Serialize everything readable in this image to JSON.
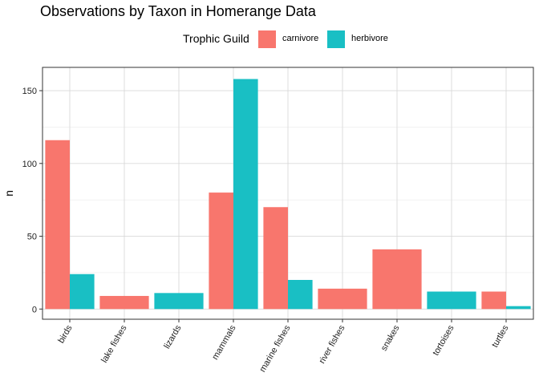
{
  "chart_data": {
    "type": "bar",
    "title": "Observations by Taxon in Homerange Data",
    "xlabel": "",
    "ylabel": "n",
    "ylim": [
      -7,
      166
    ],
    "yticks": [
      0,
      50,
      100,
      150
    ],
    "categories": [
      "birds",
      "lake fishes",
      "lizards",
      "mammals",
      "marine fishes",
      "river fishes",
      "snakes",
      "tortoises",
      "turtles"
    ],
    "legend": {
      "title": "Trophic Guild",
      "placement": "top"
    },
    "grid": true,
    "series": [
      {
        "name": "carnivore",
        "color": "#F8766D",
        "values": [
          116,
          9,
          null,
          80,
          70,
          14,
          41,
          null,
          12
        ]
      },
      {
        "name": "herbivore",
        "color": "#19BFC4",
        "values": [
          24,
          null,
          11,
          158,
          20,
          null,
          null,
          12,
          2
        ]
      }
    ]
  }
}
